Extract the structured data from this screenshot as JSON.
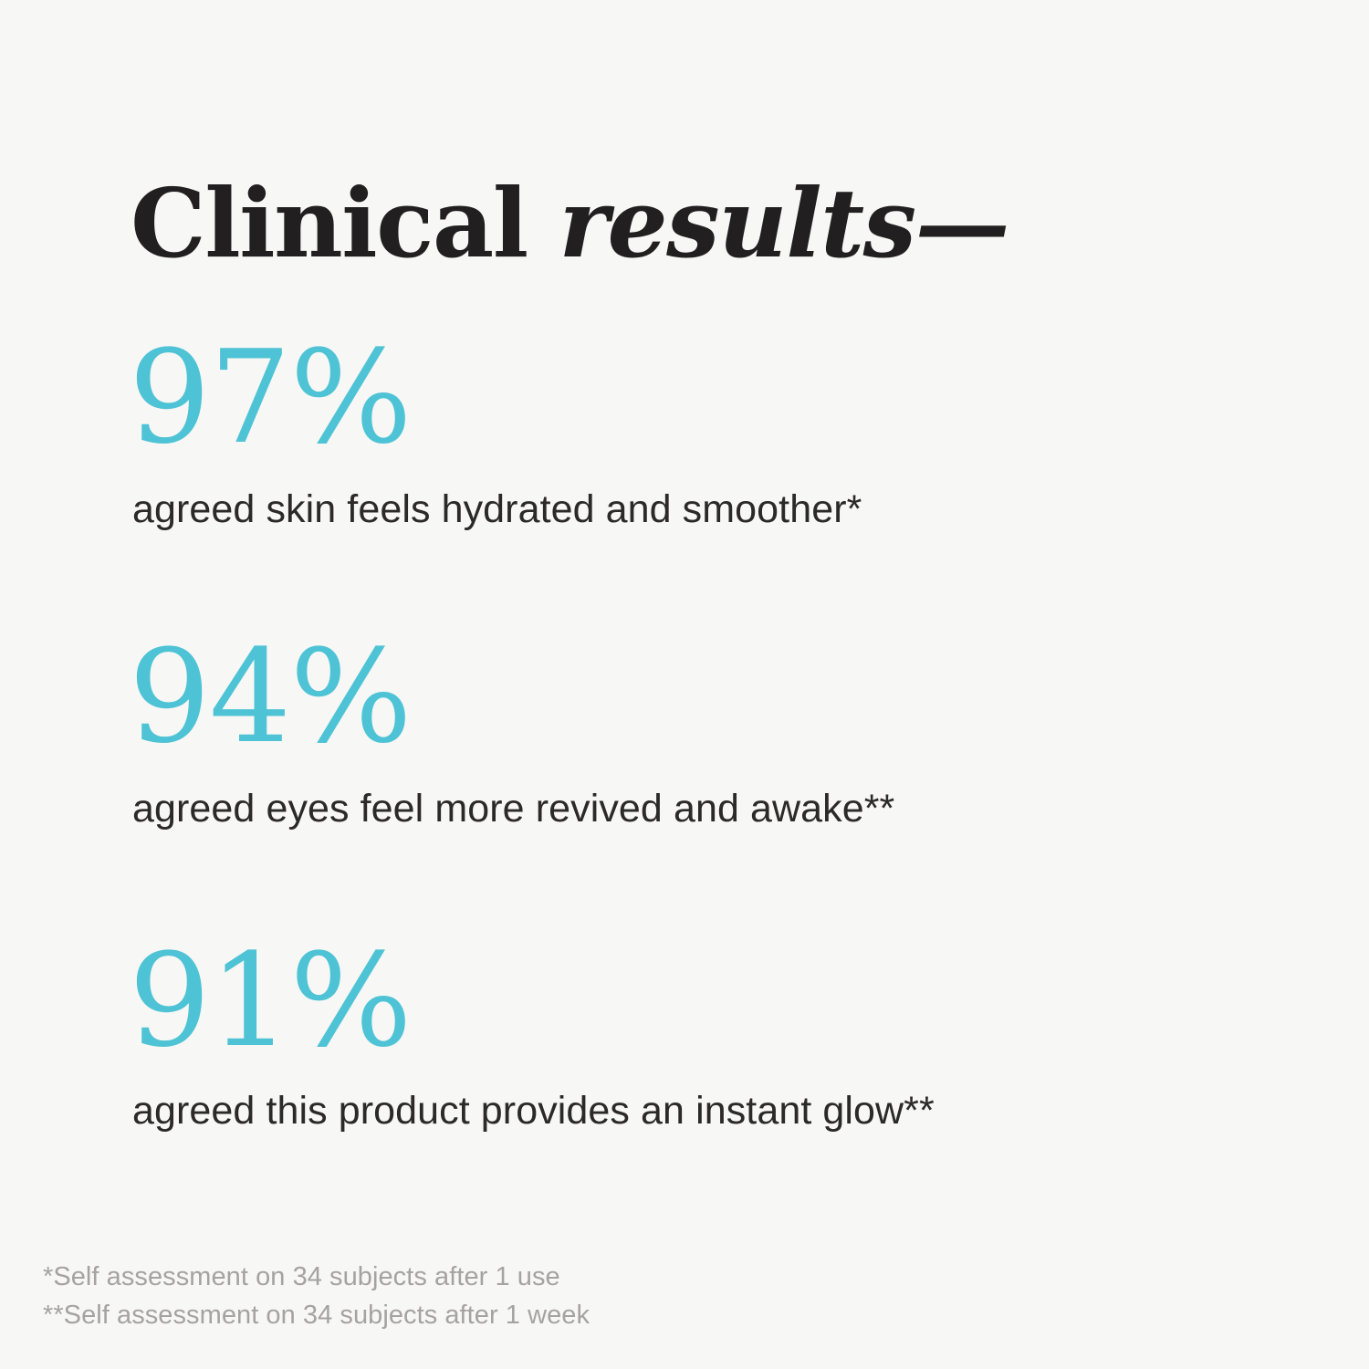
{
  "page": {
    "type": "clinical-results-infographic",
    "background": "#f7f7f5"
  },
  "heading": {
    "regular": "Clinical",
    "italic": "results—"
  },
  "stats": [
    {
      "value": "97%",
      "description": "agreed skin feels hydrated and smoother*"
    },
    {
      "value": "94%",
      "description": "agreed eyes feel more revived and awake**"
    },
    {
      "value": "91%",
      "description": "agreed this product provides an instant glow**"
    }
  ],
  "footnotes": [
    "*Self assessment on 34 subjects after 1 use",
    "**Self assessment on 34 subjects after 1 week"
  ],
  "colors": {
    "accent": "#4ec3d5",
    "heading_text": "#211f20",
    "body_text": "#2b2a28",
    "footnote_text": "#a5a3a1",
    "background": "#f7f7f5"
  }
}
